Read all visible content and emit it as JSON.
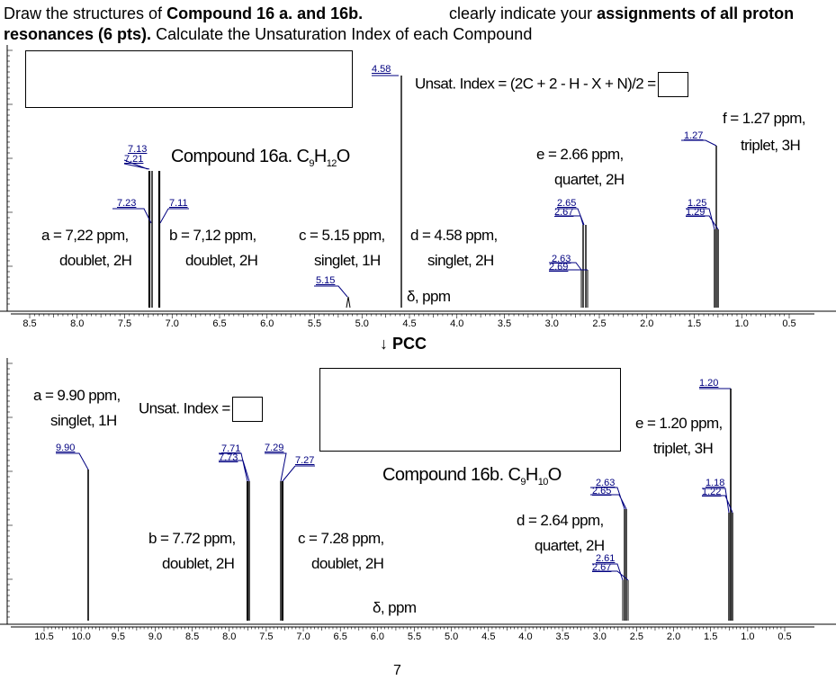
{
  "header": {
    "line1_a": "Draw the structures of ",
    "line1_b": "Compound 16 a. and 16b.",
    "line1_c": "clearly indicate your ",
    "line1_d": "assignments of all proton",
    "line2_a": "resonances (6 pts).",
    "line2_b": " Calculate the Unsaturation Index of each Compound"
  },
  "unsat_formula": "Unsat. Index = (2C + 2 - H - X + N)/2 =",
  "unsat_label": "Unsat. Index =",
  "pcc": "↓ PCC",
  "page_number": "7",
  "top": {
    "compound": "Compound 16a. C",
    "formula_sub1": "9",
    "formula_mid": "H",
    "formula_sub2": "12",
    "formula_end": "O",
    "delta": "δ, ppm",
    "annot": {
      "a1": "a = 7,22 ppm,",
      "a2": "doublet, 2H",
      "b1": "b = 7,12 ppm,",
      "b2": "doublet, 2H",
      "c1": "c = 5.15 ppm,",
      "c2": "singlet, 1H",
      "d1": "d = 4.58 ppm,",
      "d2": "singlet, 2H",
      "e1": "e = 2.66 ppm,",
      "e2": "quartet, 2H",
      "f1": "f = 1.27 ppm,",
      "f2": "triplet, 3H"
    },
    "peak_labels": [
      "4.58",
      "7.13",
      "7.21",
      "7.23",
      "7.11",
      "5.15",
      "2.65",
      "2.67",
      "2.63",
      "2.69",
      "1.27",
      "1.25",
      "1.29"
    ],
    "axis_ticks": [
      "8.5",
      "8.0",
      "7.5",
      "7.0",
      "6.5",
      "6.0",
      "5.5",
      "5.0",
      "4.5",
      "4.0",
      "3.5",
      "3.0",
      "2.5",
      "2.0",
      "1.5",
      "1.0",
      "0.5"
    ]
  },
  "bottom": {
    "compound": "Compound 16b. C",
    "formula_sub1": "9",
    "formula_mid": "H",
    "formula_sub2": "10",
    "formula_end": "O",
    "delta": "δ, ppm",
    "annot": {
      "a1": "a = 9.90 ppm,",
      "a2": "singlet, 1H",
      "b1": "b = 7.72 ppm,",
      "b2": "doublet, 2H",
      "c1": "c = 7.28 ppm,",
      "c2": "doublet, 2H",
      "d1": "d = 2.64 ppm,",
      "d2": "quartet, 2H",
      "e1": "e = 1.20 ppm,",
      "e2": "triplet, 3H"
    },
    "peak_labels": [
      "9.90",
      "7.71",
      "7.73",
      "7.29",
      "7.27",
      "2.63",
      "2.65",
      "2.61",
      "2.67",
      "1.20",
      "1.18",
      "1.22"
    ],
    "axis_ticks": [
      "10.5",
      "10.0",
      "9.5",
      "9.0",
      "8.5",
      "8.0",
      "7.5",
      "7.0",
      "6.5",
      "6.0",
      "5.5",
      "5.0",
      "4.5",
      "4.0",
      "3.5",
      "3.0",
      "2.5",
      "2.0",
      "1.5",
      "1.0",
      "0.5"
    ]
  }
}
